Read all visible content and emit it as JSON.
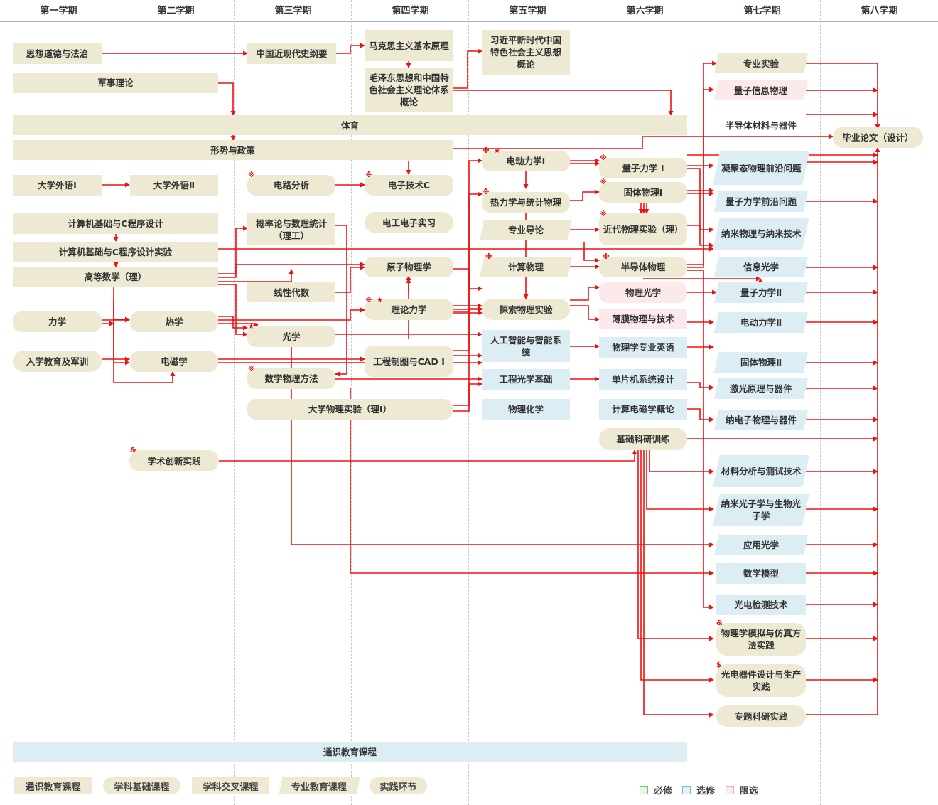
{
  "semesters": [
    "第一学期",
    "第二学期",
    "第三学期",
    "第四学期",
    "第五学期",
    "第六学期",
    "第七学期",
    "第八学期"
  ],
  "courses": {
    "c_sxdd": "思想道德与法治",
    "c_jsll": "军事理论",
    "c_zgjxds": "中国近现代史纲要",
    "c_mks": "马克思主义基本原理",
    "c_mzd": "毛泽东思想和中国特色社会主义理论体系概论",
    "c_xjp": "习近平新时代中国特色社会主义思想概论",
    "c_ty": "体育",
    "c_xsyzc": "形势与政策",
    "c_wy1": "大学外语Ⅰ",
    "c_wy2": "大学外语Ⅱ",
    "c_dlfx": "电路分析",
    "c_dzjsc": "电子技术C",
    "c_jsj": "计算机基础与C程序设计",
    "c_jsjsy": "计算机基础与C程序设计实验",
    "c_gdsx": "高等数学（理）",
    "c_glsl": "概率论与数理统计（理工）",
    "c_dgdzsx": "电工电子实习",
    "c_yzwl": "原子物理学",
    "c_xxds": "线性代数",
    "c_lllx": "理论力学",
    "c_lx": "力学",
    "c_rx": "热学",
    "c_gx": "光学",
    "c_rxjy": "入学教育及军训",
    "c_dcx": "电磁学",
    "c_gczt": "工程制图与CAD Ⅰ",
    "c_sxwl": "数学物理方法",
    "c_dxwlsy": "大学物理实验（理Ⅰ）",
    "c_xscx": "学术创新实践",
    "c_ddlx1": "电动力学Ⅰ",
    "c_rlxtj": "热力学与统计物理",
    "c_zydd": "专业导论",
    "c_jswl": "计算物理",
    "c_tswlsy": "探索物理实验",
    "c_rgzn": "人工智能与智能系统",
    "c_gcgx": "工程光学基础",
    "c_wlhx": "物理化学",
    "c_lzlx1": "量子力学 Ⅰ",
    "c_gtwl1": "固体物理Ⅰ",
    "c_jdwlsy": "近代物理实验（理）",
    "c_bdtwl": "半导体物理",
    "c_wlgx": "物理光学",
    "c_bmwl": "薄膜物理与技术",
    "c_wlxyy": "物理学专业英语",
    "c_dpj": "单片机系统设计",
    "c_jsdcx": "计算电磁学概论",
    "c_jckyxl": "基础科研训练",
    "c_zysy": "专业实验",
    "c_lzxx": "量子信息物理",
    "c_bdtcl": "半导体材料与器件",
    "c_nj": "凝聚态物理前沿问题",
    "c_lzqy": "量子力学前沿问题",
    "c_nmwl": "纳米物理与纳米技术",
    "c_xxgx": "信息光学",
    "c_lzlx2": "量子力学Ⅱ",
    "c_ddlx2": "电动力学Ⅱ",
    "c_gtwl2": "固体物理Ⅱ",
    "c_jggl": "激光原理与器件",
    "c_ndz": "纳电子物理与器件",
    "c_clfx": "材料分析与测试技术",
    "c_nmgz": "纳米光子学与生物光子学",
    "c_yygx": "应用光学",
    "c_sxmx": "数学模型",
    "c_gdjc": "光电检测技术",
    "c_mnfz": "物理学模拟与仿真方法实践",
    "c_gdqj": "光电器件设计与生产实践",
    "c_ztky": "专题科研实践",
    "c_bylw": "毕业论文（设计）",
    "c_tsjy": "通识教育课程"
  },
  "markers": {
    "xmark": "※",
    "star": "★",
    "amp": "&",
    "dollar": "$"
  },
  "legend": {
    "types": [
      "通识教育课程",
      "学科基础课程",
      "学科交叉课程",
      "专业教育课程",
      "实践环节"
    ],
    "status": [
      "必修",
      "选修",
      "限选"
    ]
  },
  "colors": {
    "arrow": "#ee1111",
    "green": "#6ccf6c",
    "blue": "#7ab8d9",
    "pink": "#f4a9b8"
  }
}
